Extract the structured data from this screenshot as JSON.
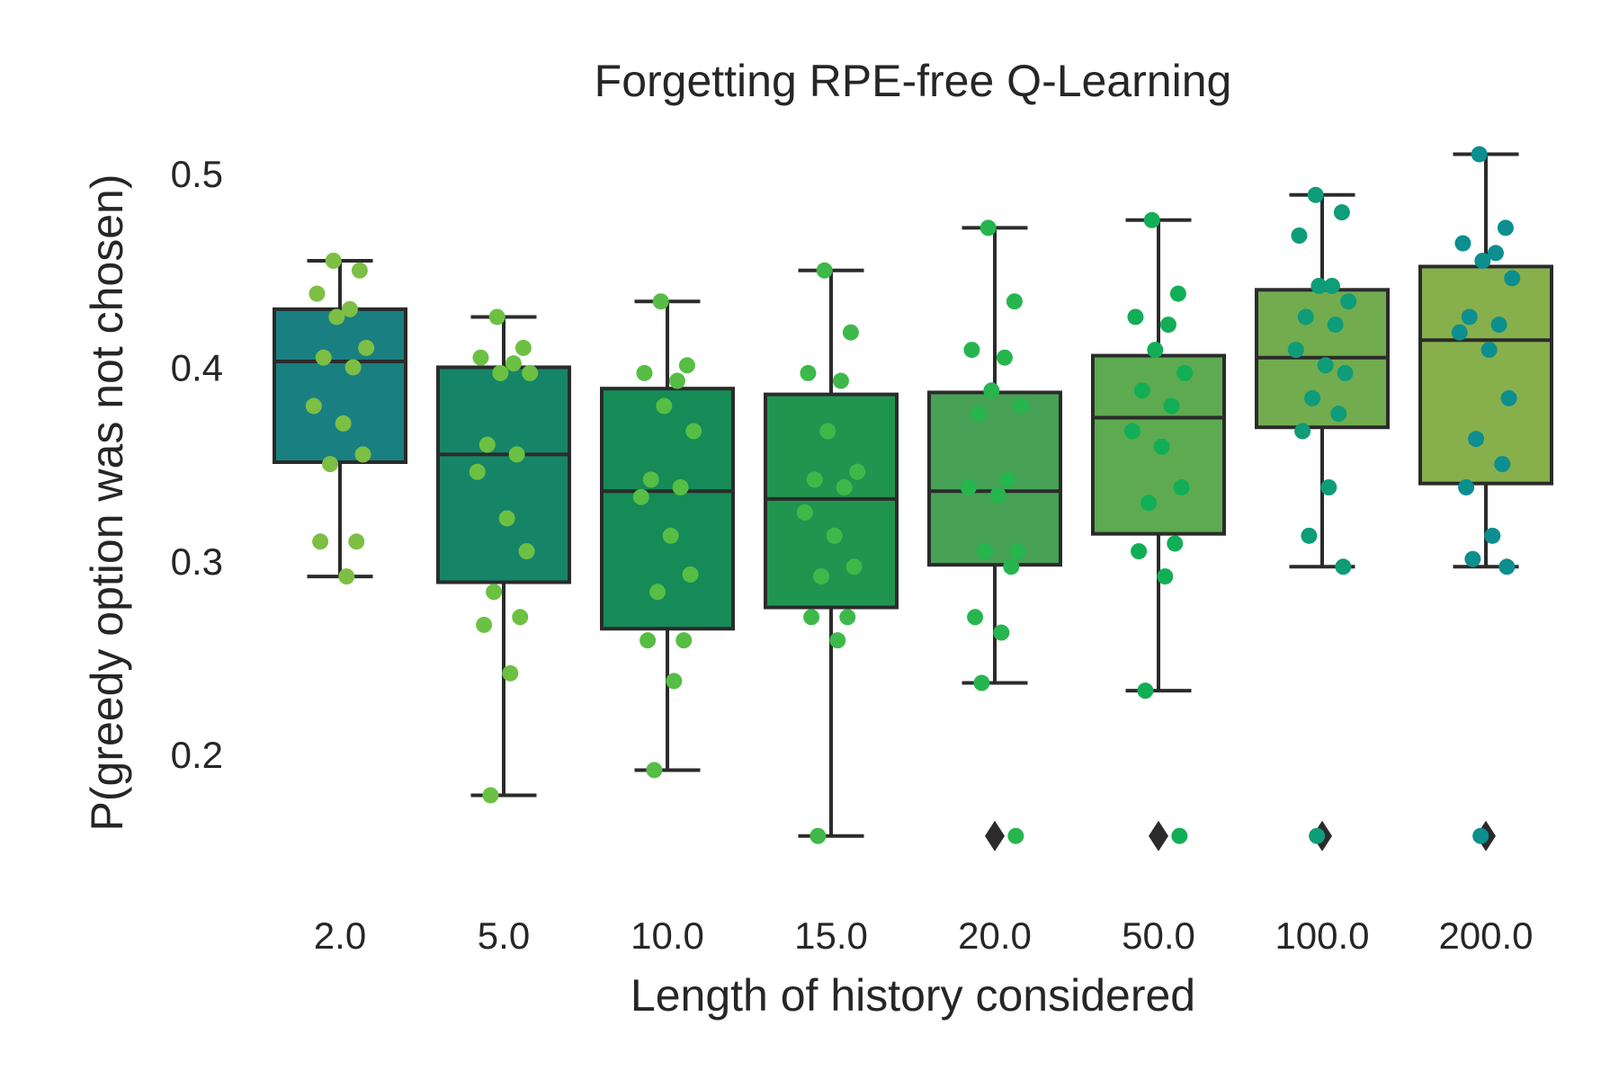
{
  "chart_data": {
    "type": "box",
    "title": "Forgetting RPE-free Q-Learning",
    "xlabel": "Length of history considered",
    "ylabel": "P(greedy option was not chosen)",
    "ylim": [
      0.13,
      0.52
    ],
    "yticks": [
      0.2,
      0.3,
      0.4,
      0.5
    ],
    "grid": false,
    "legend": "none",
    "categories": [
      "2.0",
      "5.0",
      "10.0",
      "15.0",
      "20.0",
      "50.0",
      "100.0",
      "200.0"
    ],
    "groups": [
      {
        "category": "2.0",
        "box_color": "#1A7F80",
        "point_color": "#7CBF44",
        "whisker_low": 0.292,
        "q1": 0.351,
        "median": 0.403,
        "q3": 0.43,
        "whisker_high": 0.455,
        "outliers": [],
        "points": [
          0.455,
          0.45,
          0.438,
          0.43,
          0.426,
          0.41,
          0.405,
          0.4,
          0.38,
          0.371,
          0.355,
          0.35,
          0.31,
          0.31,
          0.292
        ]
      },
      {
        "category": "5.0",
        "box_color": "#168567",
        "point_color": "#6CC143",
        "whisker_low": 0.179,
        "q1": 0.289,
        "median": 0.355,
        "q3": 0.4,
        "whisker_high": 0.426,
        "outliers": [],
        "points": [
          0.426,
          0.41,
          0.405,
          0.402,
          0.397,
          0.397,
          0.36,
          0.355,
          0.346,
          0.322,
          0.305,
          0.284,
          0.271,
          0.267,
          0.242,
          0.179
        ]
      },
      {
        "category": "10.0",
        "box_color": "#168A57",
        "point_color": "#56BD45",
        "whisker_low": 0.192,
        "q1": 0.265,
        "median": 0.336,
        "q3": 0.389,
        "whisker_high": 0.434,
        "outliers": [],
        "points": [
          0.434,
          0.401,
          0.397,
          0.393,
          0.38,
          0.367,
          0.342,
          0.338,
          0.333,
          0.313,
          0.293,
          0.284,
          0.259,
          0.259,
          0.238,
          0.192
        ]
      },
      {
        "category": "15.0",
        "box_color": "#209550",
        "point_color": "#3EB949",
        "whisker_low": 0.158,
        "q1": 0.276,
        "median": 0.332,
        "q3": 0.386,
        "whisker_high": 0.45,
        "outliers": [],
        "points": [
          0.45,
          0.418,
          0.397,
          0.393,
          0.367,
          0.346,
          0.342,
          0.338,
          0.325,
          0.313,
          0.297,
          0.292,
          0.271,
          0.271,
          0.259,
          0.158
        ]
      },
      {
        "category": "20.0",
        "box_color": "#47A157",
        "point_color": "#27B54E",
        "whisker_low": 0.237,
        "q1": 0.298,
        "median": 0.336,
        "q3": 0.387,
        "whisker_high": 0.472,
        "outliers": [
          0.158
        ],
        "points": [
          0.472,
          0.434,
          0.409,
          0.405,
          0.388,
          0.38,
          0.376,
          0.342,
          0.338,
          0.334,
          0.305,
          0.305,
          0.297,
          0.271,
          0.263,
          0.237,
          0.158
        ]
      },
      {
        "category": "50.0",
        "box_color": "#5DAA50",
        "point_color": "#12AE56",
        "whisker_low": 0.233,
        "q1": 0.314,
        "median": 0.374,
        "q3": 0.406,
        "whisker_high": 0.476,
        "outliers": [
          0.158
        ],
        "points": [
          0.476,
          0.438,
          0.426,
          0.422,
          0.409,
          0.397,
          0.388,
          0.38,
          0.367,
          0.359,
          0.338,
          0.33,
          0.309,
          0.305,
          0.292,
          0.233,
          0.158
        ]
      },
      {
        "category": "100.0",
        "box_color": "#72AC4F",
        "point_color": "#0F9C78",
        "whisker_low": 0.297,
        "q1": 0.369,
        "median": 0.405,
        "q3": 0.44,
        "whisker_high": 0.489,
        "outliers": [
          0.158
        ],
        "points": [
          0.489,
          0.48,
          0.468,
          0.442,
          0.442,
          0.434,
          0.426,
          0.422,
          0.409,
          0.401,
          0.397,
          0.384,
          0.376,
          0.367,
          0.338,
          0.313,
          0.297,
          0.158
        ]
      },
      {
        "category": "200.0",
        "box_color": "#87B04C",
        "point_color": "#0D8F8F",
        "whisker_low": 0.297,
        "q1": 0.34,
        "median": 0.414,
        "q3": 0.452,
        "whisker_high": 0.51,
        "outliers": [
          0.158
        ],
        "points": [
          0.51,
          0.472,
          0.464,
          0.459,
          0.455,
          0.446,
          0.426,
          0.422,
          0.418,
          0.409,
          0.384,
          0.363,
          0.35,
          0.338,
          0.313,
          0.301,
          0.297,
          0.158
        ]
      }
    ]
  }
}
